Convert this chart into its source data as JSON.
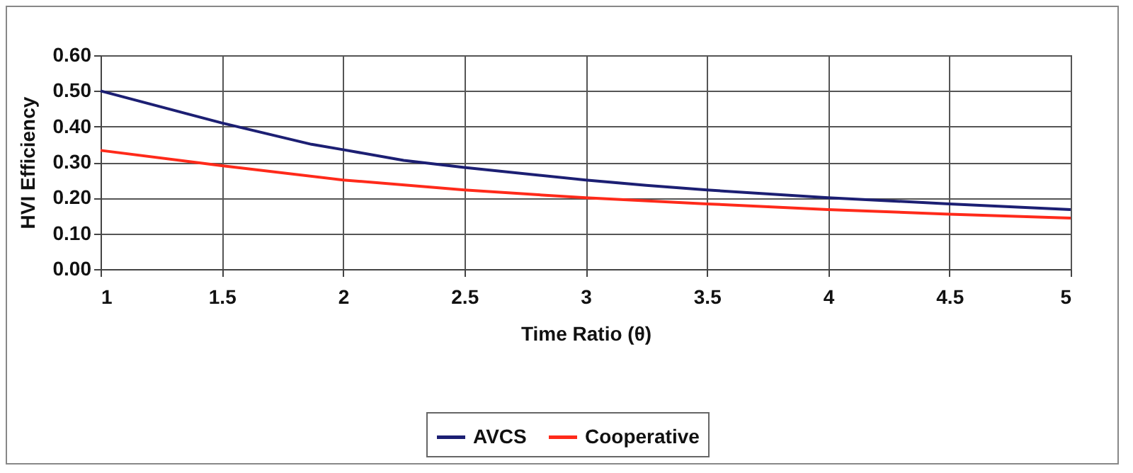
{
  "chart_data": {
    "type": "line",
    "xlabel": "Time Ratio (θ)",
    "ylabel": "HVI Efficiency",
    "xlim": [
      1,
      5
    ],
    "xticks": [
      1,
      1.5,
      2,
      2.5,
      3,
      3.5,
      4,
      4.5,
      5
    ],
    "ylim": [
      0,
      0.6
    ],
    "yticks": [
      {
        "value": 0,
        "label": "0.00"
      },
      {
        "value": 0.1,
        "label": "0.10"
      },
      {
        "value": 0.2,
        "label": "0.20"
      },
      {
        "value": 0.3,
        "label": "0.30"
      },
      {
        "value": 0.4,
        "label": "0.40"
      },
      {
        "value": 0.5,
        "label": "0.50"
      },
      {
        "value": 0.6,
        "label": "0.60"
      }
    ],
    "grid": true,
    "legend": "bottom",
    "marker": "none",
    "line_style": "solid",
    "series": [
      {
        "name": "AVCS",
        "color": "#1c1f73",
        "x": [
          1,
          1.5,
          1.87,
          2,
          2.25,
          2.5,
          3,
          3.25,
          3.5,
          4,
          4.5,
          5
        ],
        "values": [
          0.5,
          0.41,
          0.35,
          0.335,
          0.305,
          0.285,
          0.25,
          0.235,
          0.222,
          0.2,
          0.183,
          0.167
        ]
      },
      {
        "name": "Cooperative",
        "color": "#ff2a1a",
        "x": [
          1,
          1.5,
          2,
          2.5,
          3,
          3.5,
          4,
          4.5,
          5
        ],
        "values": [
          0.333,
          0.29,
          0.25,
          0.222,
          0.2,
          0.183,
          0.167,
          0.154,
          0.143
        ]
      }
    ]
  }
}
